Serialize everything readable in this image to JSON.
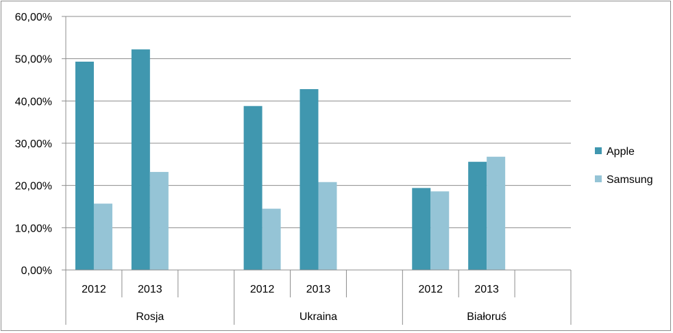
{
  "chart_data": {
    "type": "bar",
    "y_tick_labels": [
      "0,00%",
      "10,00%",
      "20,00%",
      "30,00%",
      "40,00%",
      "50,00%",
      "60,00%"
    ],
    "ylim": [
      0,
      0.6
    ],
    "grid": true,
    "legend_position": "right",
    "groups": [
      {
        "label": "Rosja",
        "years": [
          "2012",
          "2013"
        ]
      },
      {
        "label": "Ukraina",
        "years": [
          "2012",
          "2013"
        ]
      },
      {
        "label": "Białoruś",
        "years": [
          "2012",
          "2013"
        ]
      }
    ],
    "series": [
      {
        "name": "Apple",
        "color": "#4097AF",
        "values": [
          0.493,
          0.522,
          0.388,
          0.428,
          0.194,
          0.256
        ]
      },
      {
        "name": "Samsung",
        "color": "#95C4D6",
        "values": [
          0.157,
          0.232,
          0.145,
          0.208,
          0.186,
          0.268
        ]
      }
    ]
  }
}
